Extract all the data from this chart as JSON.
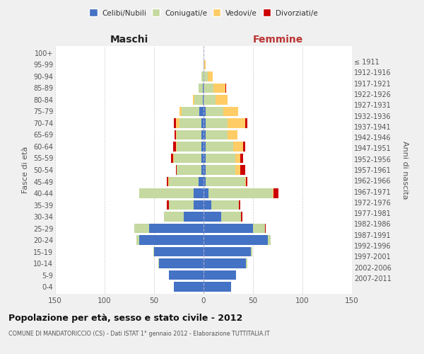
{
  "age_groups": [
    "0-4",
    "5-9",
    "10-14",
    "15-19",
    "20-24",
    "25-29",
    "30-34",
    "35-39",
    "40-44",
    "45-49",
    "50-54",
    "55-59",
    "60-64",
    "65-69",
    "70-74",
    "75-79",
    "80-84",
    "85-89",
    "90-94",
    "95-99",
    "100+"
  ],
  "birth_years": [
    "2007-2011",
    "2002-2006",
    "1997-2001",
    "1992-1996",
    "1987-1991",
    "1982-1986",
    "1977-1981",
    "1972-1976",
    "1967-1971",
    "1962-1966",
    "1957-1961",
    "1952-1956",
    "1947-1951",
    "1942-1946",
    "1937-1941",
    "1932-1936",
    "1927-1931",
    "1922-1926",
    "1917-1921",
    "1912-1916",
    "≤ 1911"
  ],
  "males": {
    "celibi": [
      30,
      35,
      45,
      50,
      65,
      55,
      20,
      10,
      10,
      5,
      2,
      2,
      2,
      2,
      2,
      4,
      1,
      1,
      0,
      0,
      0
    ],
    "coniugati": [
      0,
      0,
      1,
      1,
      3,
      15,
      20,
      25,
      55,
      30,
      25,
      28,
      25,
      25,
      22,
      18,
      8,
      4,
      2,
      0,
      0
    ],
    "vedovi": [
      0,
      0,
      0,
      0,
      0,
      0,
      0,
      0,
      0,
      1,
      0,
      1,
      1,
      1,
      4,
      2,
      2,
      0,
      0,
      0,
      0
    ],
    "divorziati": [
      0,
      0,
      0,
      0,
      0,
      0,
      0,
      2,
      0,
      1,
      1,
      2,
      3,
      1,
      2,
      0,
      0,
      0,
      0,
      0,
      0
    ]
  },
  "females": {
    "nubili": [
      28,
      33,
      43,
      48,
      65,
      50,
      18,
      8,
      5,
      2,
      2,
      2,
      2,
      2,
      2,
      2,
      0,
      0,
      0,
      0,
      0
    ],
    "coniugate": [
      0,
      0,
      1,
      1,
      3,
      12,
      20,
      28,
      65,
      40,
      30,
      30,
      28,
      22,
      22,
      18,
      12,
      10,
      4,
      1,
      0
    ],
    "vedove": [
      0,
      0,
      0,
      0,
      0,
      0,
      0,
      0,
      1,
      1,
      5,
      5,
      10,
      10,
      18,
      15,
      12,
      12,
      5,
      1,
      0
    ],
    "divorziate": [
      0,
      0,
      0,
      0,
      0,
      1,
      1,
      1,
      5,
      1,
      5,
      3,
      2,
      0,
      2,
      0,
      0,
      1,
      0,
      0,
      0
    ]
  },
  "colors": {
    "celibi": "#4472C4",
    "coniugati": "#C5D9A0",
    "vedovi": "#FFCC66",
    "divorziati": "#CC0000"
  },
  "xlim": 150,
  "title": "Popolazione per età, sesso e stato civile - 2012",
  "subtitle": "COMUNE DI MANDATORICCIO (CS) - Dati ISTAT 1° gennaio 2012 - Elaborazione TUTTITALIA.IT",
  "ylabel_left": "Fasce di età",
  "ylabel_right": "Anni di nascita",
  "xlabel_left": "Maschi",
  "xlabel_right": "Femmine",
  "legend_labels": [
    "Celibi/Nubili",
    "Coniugati/e",
    "Vedovi/e",
    "Divorziati/e"
  ],
  "bg_color": "#f0f0f0",
  "plot_bg": "#ffffff"
}
